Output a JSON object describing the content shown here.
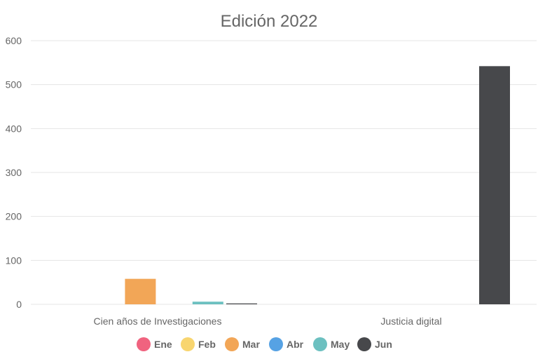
{
  "chart_data": {
    "type": "bar",
    "title": "Edición 2022",
    "categories": [
      "Cien años de Investigaciones",
      "Justicia digital"
    ],
    "series": [
      {
        "name": "Ene",
        "color": "#f0637f",
        "values": [
          0,
          0
        ]
      },
      {
        "name": "Feb",
        "color": "#f8d56f",
        "values": [
          0,
          0
        ]
      },
      {
        "name": "Mar",
        "color": "#f2a657",
        "values": [
          58,
          0
        ]
      },
      {
        "name": "Abr",
        "color": "#56a2e4",
        "values": [
          0,
          0
        ]
      },
      {
        "name": "May",
        "color": "#6cc0c0",
        "values": [
          6,
          0
        ]
      },
      {
        "name": "Jun",
        "color": "#47484b",
        "values": [
          2,
          542
        ]
      }
    ],
    "ylim": [
      0,
      600
    ],
    "yticks": [
      0,
      100,
      200,
      300,
      400,
      500,
      600
    ],
    "grid": true,
    "legend": "bottom"
  }
}
